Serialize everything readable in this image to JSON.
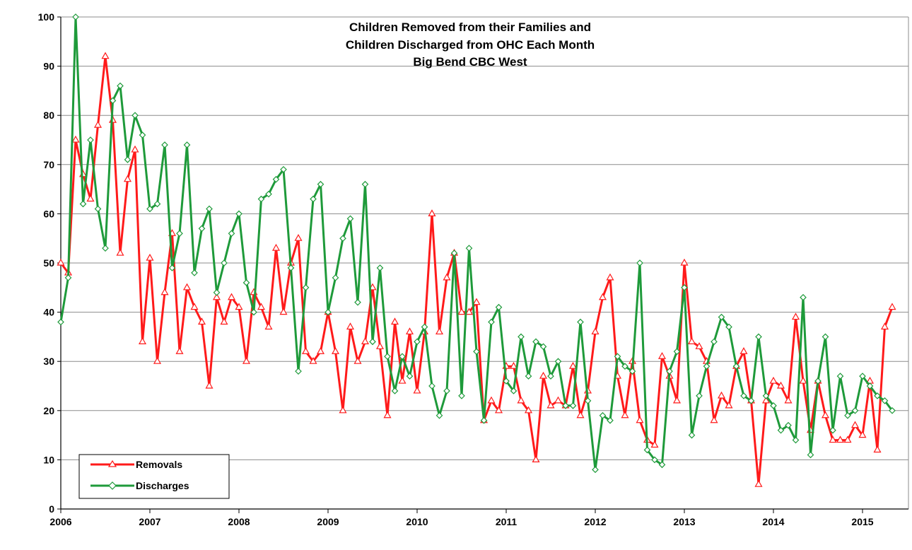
{
  "chart_data": {
    "type": "line",
    "title_lines": [
      "Children Removed from their Families and",
      "Children Discharged from OHC Each Month",
      "Big Bend CBC West"
    ],
    "xlabel": "",
    "ylabel": "",
    "x_ticks": [
      "2006",
      "2007",
      "2008",
      "2009",
      "2010",
      "2011",
      "2012",
      "2013",
      "2014",
      "2015"
    ],
    "x_start_year": 2006,
    "xlim": [
      0,
      113
    ],
    "y_ticks": [
      "0",
      "10",
      "20",
      "30",
      "40",
      "50",
      "60",
      "70",
      "80",
      "90",
      "100"
    ],
    "ylim": [
      0,
      100
    ],
    "grid": "horizontal",
    "legend_position": "bottom-left",
    "series": [
      {
        "name": "Removals",
        "color": "#ff1a1a",
        "marker": "triangle",
        "values": [
          50,
          48,
          75,
          68,
          63,
          78,
          92,
          79,
          52,
          67,
          73,
          34,
          51,
          30,
          44,
          56,
          32,
          45,
          41,
          38,
          25,
          43,
          38,
          43,
          41,
          30,
          44,
          41,
          37,
          53,
          40,
          50,
          55,
          32,
          30,
          32,
          40,
          32,
          20,
          37,
          30,
          34,
          45,
          33,
          19,
          38,
          26,
          36,
          24,
          36,
          60,
          36,
          47,
          52,
          40,
          40,
          42,
          18,
          22,
          20,
          29,
          29,
          22,
          20,
          10,
          27,
          21,
          22,
          21,
          29,
          19,
          24,
          36,
          43,
          47,
          27,
          19,
          30,
          18,
          14,
          13,
          31,
          27,
          22,
          50,
          34,
          33,
          30,
          18,
          23,
          21,
          29,
          32,
          22,
          5,
          22,
          26,
          25,
          22,
          39,
          26,
          16,
          26,
          19,
          14,
          14,
          14,
          17,
          15,
          26,
          12,
          37,
          41
        ]
      },
      {
        "name": "Discharges",
        "color": "#1e9a3a",
        "marker": "diamond",
        "values": [
          38,
          47,
          100,
          62,
          75,
          61,
          53,
          83,
          86,
          71,
          80,
          76,
          61,
          62,
          74,
          49,
          56,
          74,
          48,
          57,
          61,
          44,
          50,
          56,
          60,
          46,
          40,
          63,
          64,
          67,
          69,
          49,
          28,
          45,
          63,
          66,
          40,
          47,
          55,
          59,
          42,
          66,
          34,
          49,
          31,
          24,
          31,
          27,
          34,
          37,
          25,
          19,
          24,
          52,
          23,
          53,
          32,
          18,
          38,
          41,
          26,
          24,
          35,
          27,
          34,
          33,
          27,
          30,
          21,
          21,
          38,
          22,
          8,
          19,
          18,
          31,
          29,
          28,
          50,
          12,
          10,
          9,
          28,
          32,
          45,
          15,
          23,
          29,
          34,
          39,
          37,
          29,
          23,
          22,
          35,
          23,
          21,
          16,
          17,
          14,
          43,
          11,
          26,
          35,
          16,
          27,
          19,
          20,
          27,
          25,
          23,
          22,
          20
        ]
      }
    ]
  }
}
